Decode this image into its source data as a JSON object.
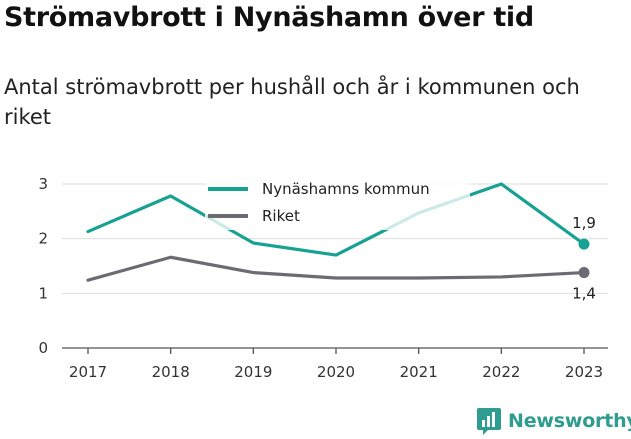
{
  "header": {
    "title": "Strömavbrott i Nynäshamn över tid",
    "subtitle": "Antal strömavbrott per hushåll och år i kommunen och riket"
  },
  "brand": {
    "name": "Newsworthy",
    "icon": "bar-chart-logo-icon",
    "color": "#2e9c8e"
  },
  "chart_data": {
    "type": "line",
    "title": "Strömavbrott i Nynäshamn över tid",
    "subtitle": "Antal strömavbrott per hushåll och år i kommunen och riket",
    "x": [
      "2017",
      "2018",
      "2019",
      "2020",
      "2021",
      "2022",
      "2023"
    ],
    "ylim": [
      0,
      3
    ],
    "yticks": [
      0,
      1,
      2,
      3
    ],
    "grid": true,
    "legend_position": "top-center",
    "series": [
      {
        "name": "Nynäshamns kommun",
        "color": "#17a193",
        "values": [
          2.13,
          2.78,
          1.92,
          1.7,
          2.47,
          3.0,
          1.9
        ],
        "end_label": "1,9"
      },
      {
        "name": "Riket",
        "color": "#6b6b73",
        "values": [
          1.24,
          1.66,
          1.38,
          1.28,
          1.28,
          1.3,
          1.38
        ],
        "end_label": "1,4"
      }
    ]
  }
}
